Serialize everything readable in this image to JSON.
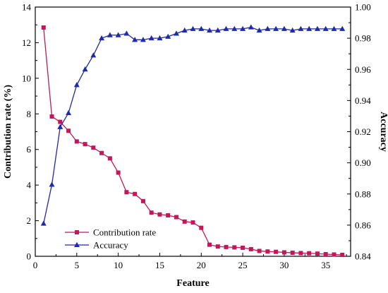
{
  "chart_data": {
    "type": "line",
    "x": [
      1,
      2,
      3,
      4,
      5,
      6,
      7,
      8,
      9,
      10,
      11,
      12,
      13,
      14,
      15,
      16,
      17,
      18,
      19,
      20,
      21,
      22,
      23,
      24,
      25,
      26,
      27,
      28,
      29,
      30,
      31,
      32,
      33,
      34,
      35,
      36,
      37
    ],
    "series": [
      {
        "name": "Contribution rate",
        "axis": "left",
        "color": "#c0185a",
        "marker": "square",
        "values": [
          12.85,
          7.85,
          7.55,
          7.05,
          6.45,
          6.3,
          6.1,
          5.8,
          5.5,
          4.7,
          3.6,
          3.5,
          3.1,
          2.45,
          2.35,
          2.3,
          2.2,
          1.95,
          1.9,
          1.6,
          0.65,
          0.55,
          0.52,
          0.5,
          0.48,
          0.4,
          0.3,
          0.27,
          0.25,
          0.22,
          0.2,
          0.18,
          0.17,
          0.15,
          0.12,
          0.1,
          0.08
        ]
      },
      {
        "name": "Accuracy",
        "axis": "right",
        "color": "#1f2aa8",
        "marker": "triangle",
        "values": [
          0.861,
          0.886,
          0.923,
          0.932,
          0.95,
          0.96,
          0.969,
          0.98,
          0.982,
          0.982,
          0.983,
          0.979,
          0.979,
          0.98,
          0.98,
          0.981,
          0.983,
          0.985,
          0.986,
          0.986,
          0.985,
          0.985,
          0.986,
          0.986,
          0.986,
          0.987,
          0.985,
          0.986,
          0.986,
          0.986,
          0.985,
          0.986,
          0.986,
          0.986,
          0.986,
          0.986,
          0.986
        ]
      }
    ],
    "xlabel": "Feature",
    "ylabel_left": "Contribution rate (%)",
    "ylabel_right": "Accuracy",
    "xlim": [
      0,
      38
    ],
    "ylim_left": [
      0,
      14
    ],
    "ylim_right": [
      0.84,
      1.0
    ],
    "xticks": [
      0,
      5,
      10,
      15,
      20,
      25,
      30,
      35
    ],
    "yticks_left": [
      0,
      2,
      4,
      6,
      8,
      10,
      12,
      14
    ],
    "yticks_right": [
      0.84,
      0.86,
      0.88,
      0.9,
      0.92,
      0.94,
      0.96,
      0.98,
      1.0
    ],
    "ytick_labels_right": [
      "0.84",
      "0.86",
      "0.88",
      "0.90",
      "0.92",
      "0.94",
      "0.96",
      "0.98",
      "1.00"
    ],
    "grid": false,
    "legend_position": "bottom-left"
  }
}
